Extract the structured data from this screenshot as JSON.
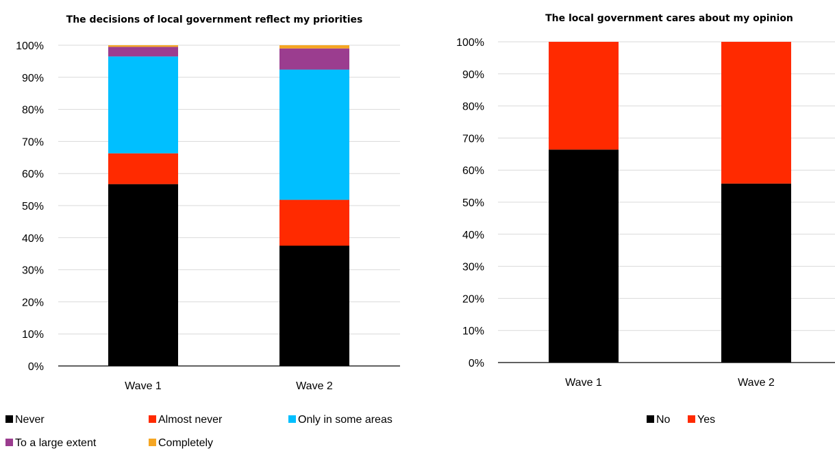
{
  "chart_data": [
    {
      "type": "bar",
      "stacked": true,
      "title": "The decisions of local government reflect my priorities",
      "xlabel": "",
      "ylabel": "",
      "ylim": [
        0,
        1
      ],
      "ytick_values": [
        0,
        0.1,
        0.2,
        0.3,
        0.4,
        0.5,
        0.6,
        0.7,
        0.8,
        0.9,
        1.0
      ],
      "ytick_labels": [
        "0%",
        "10%",
        "20%",
        "30%",
        "40%",
        "50%",
        "60%",
        "70%",
        "80%",
        "90%",
        "100%"
      ],
      "grid": true,
      "legend_position": "bottom",
      "categories": [
        "Wave 1",
        "Wave 2"
      ],
      "series": [
        {
          "name": "Never",
          "color": "#000000",
          "values": [
            0.567,
            0.375
          ]
        },
        {
          "name": "Almost never",
          "color": "#ff2a00",
          "values": [
            0.096,
            0.143
          ]
        },
        {
          "name": "Only in some areas",
          "color": "#00bfff",
          "values": [
            0.302,
            0.406
          ]
        },
        {
          "name": "To a large extent",
          "color": "#9b3d8f",
          "values": [
            0.03,
            0.066
          ]
        },
        {
          "name": "Completely",
          "color": "#f5a623",
          "values": [
            0.005,
            0.01
          ]
        }
      ]
    },
    {
      "type": "bar",
      "stacked": true,
      "title": "The local government cares about my opinion",
      "xlabel": "",
      "ylabel": "",
      "ylim": [
        0,
        1
      ],
      "ytick_values": [
        0,
        0.1,
        0.2,
        0.3,
        0.4,
        0.5,
        0.6,
        0.7,
        0.8,
        0.9,
        1.0
      ],
      "ytick_labels": [
        "0%",
        "10%",
        "20%",
        "30%",
        "40%",
        "50%",
        "60%",
        "70%",
        "80%",
        "90%",
        "100%"
      ],
      "grid": true,
      "legend_position": "bottom",
      "categories": [
        "Wave 1",
        "Wave 2"
      ],
      "series": [
        {
          "name": "No",
          "color": "#000000",
          "values": [
            0.664,
            0.558
          ]
        },
        {
          "name": "Yes",
          "color": "#ff2a00",
          "values": [
            0.336,
            0.442
          ]
        }
      ]
    }
  ]
}
